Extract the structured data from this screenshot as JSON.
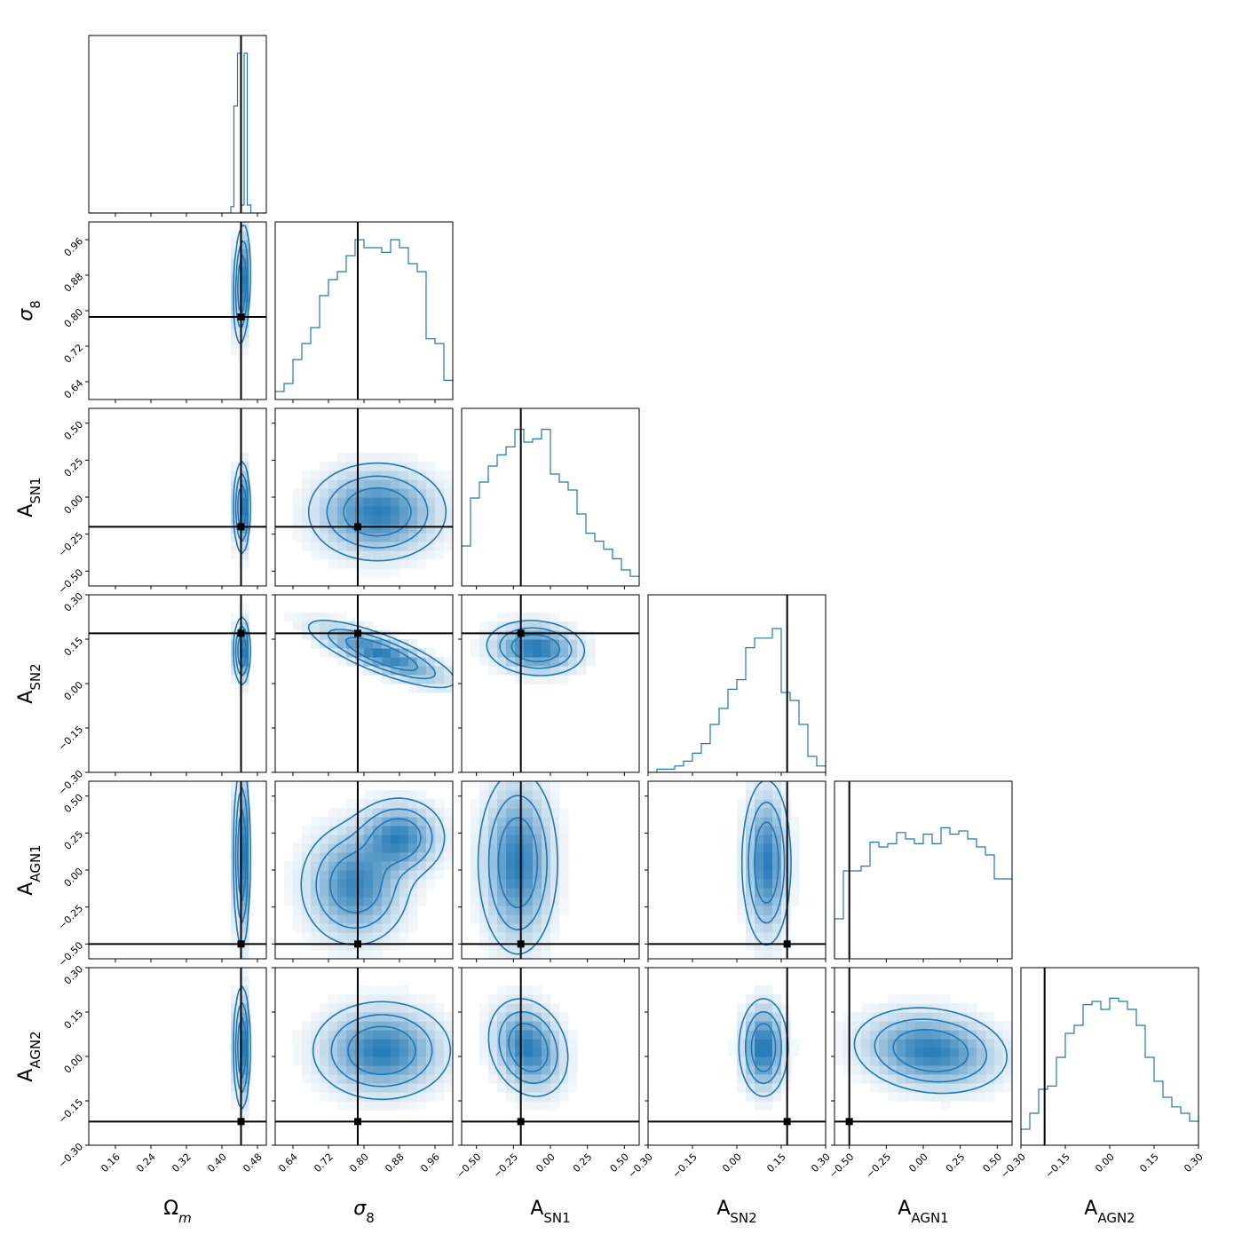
{
  "chart_data": {
    "type": "corner",
    "colors": {
      "series": "#1f77b4",
      "truth": "#000000",
      "frame": "#000000"
    },
    "parameters": [
      {
        "id": "Om",
        "label_main": "Ω",
        "label_sub": "m",
        "sub_italic": true,
        "range": [
          0.1,
          0.5
        ],
        "ticks": [
          "0.16",
          "0.24",
          "0.32",
          "0.40",
          "0.48"
        ],
        "truth": 0.443
      },
      {
        "id": "s8",
        "label_main": "σ",
        "label_sub": "8",
        "sub_italic": false,
        "range": [
          0.6,
          1.0
        ],
        "ticks": [
          "0.64",
          "0.72",
          "0.80",
          "0.88",
          "0.96"
        ],
        "truth": 0.786
      },
      {
        "id": "ASN1",
        "label_main": "A",
        "label_sub": "SN1",
        "sub_italic": false,
        "range": [
          -0.6,
          0.6
        ],
        "ticks": [
          "−0.50",
          "−0.25",
          "0.00",
          "0.25",
          "0.50"
        ],
        "truth": -0.2
      },
      {
        "id": "ASN2",
        "label_main": "A",
        "label_sub": "SN2",
        "sub_italic": false,
        "range": [
          -0.3,
          0.3
        ],
        "ticks": [
          "−0.30",
          "−0.15",
          "0.00",
          "0.15",
          "0.30"
        ],
        "truth": 0.17
      },
      {
        "id": "AAGN1",
        "label_main": "A",
        "label_sub": "AGN1",
        "sub_italic": false,
        "range": [
          -0.6,
          0.6
        ],
        "ticks": [
          "−0.50",
          "−0.25",
          "0.00",
          "0.25",
          "0.50"
        ],
        "truth": -0.5
      },
      {
        "id": "AAGN2",
        "label_main": "A",
        "label_sub": "AGN2",
        "sub_italic": false,
        "range": [
          -0.3,
          0.3
        ],
        "ticks": [
          "−0.30",
          "−0.15",
          "0.00",
          "0.15",
          "0.30"
        ],
        "truth": -0.22
      }
    ],
    "marginals": [
      {
        "param": "Om",
        "bin_edges": [
          0.1,
          0.42,
          0.427,
          0.435,
          0.442,
          0.45,
          0.457,
          0.465,
          0.5
        ],
        "counts": [
          0,
          0.04,
          0.67,
          1.0,
          0.05,
          1.0,
          0.05,
          0.0
        ]
      },
      {
        "param": "s8",
        "bin_edges": [
          0.6,
          0.62,
          0.64,
          0.66,
          0.68,
          0.7,
          0.72,
          0.74,
          0.76,
          0.78,
          0.8,
          0.82,
          0.84,
          0.86,
          0.88,
          0.9,
          0.92,
          0.94,
          0.96,
          0.98,
          1.0
        ],
        "counts": [
          0.05,
          0.1,
          0.25,
          0.35,
          0.45,
          0.65,
          0.75,
          0.8,
          0.9,
          1.0,
          0.95,
          0.95,
          0.92,
          1.0,
          0.95,
          0.85,
          0.8,
          0.38,
          0.35,
          0.12
        ]
      },
      {
        "param": "ASN1",
        "bin_edges": [
          -0.6,
          -0.54,
          -0.48,
          -0.42,
          -0.36,
          -0.3,
          -0.24,
          -0.18,
          -0.12,
          -0.06,
          0.0,
          0.06,
          0.12,
          0.18,
          0.24,
          0.3,
          0.36,
          0.42,
          0.48,
          0.54,
          0.6
        ],
        "counts": [
          0.25,
          0.55,
          0.65,
          0.75,
          0.82,
          0.87,
          0.98,
          0.9,
          0.92,
          0.98,
          0.7,
          0.65,
          0.6,
          0.45,
          0.33,
          0.28,
          0.23,
          0.17,
          0.1,
          0.06
        ]
      },
      {
        "param": "ASN2",
        "bin_edges": [
          -0.3,
          -0.27,
          -0.24,
          -0.21,
          -0.18,
          -0.15,
          -0.12,
          -0.09,
          -0.06,
          -0.03,
          0.0,
          0.03,
          0.06,
          0.09,
          0.12,
          0.15,
          0.18,
          0.21,
          0.24,
          0.27,
          0.3
        ],
        "counts": [
          0.0,
          0.02,
          0.02,
          0.04,
          0.07,
          0.12,
          0.18,
          0.3,
          0.4,
          0.52,
          0.58,
          0.78,
          0.84,
          0.84,
          0.9,
          0.5,
          0.45,
          0.3,
          0.1,
          0.04
        ]
      },
      {
        "param": "AAGN1",
        "bin_edges": [
          -0.6,
          -0.54,
          -0.48,
          -0.42,
          -0.36,
          -0.3,
          -0.24,
          -0.18,
          -0.12,
          -0.06,
          0.0,
          0.06,
          0.12,
          0.18,
          0.24,
          0.3,
          0.36,
          0.42,
          0.48,
          0.54,
          0.6
        ],
        "counts": [
          0.25,
          0.55,
          0.55,
          0.58,
          0.73,
          0.7,
          0.72,
          0.79,
          0.75,
          0.72,
          0.78,
          0.72,
          0.82,
          0.78,
          0.8,
          0.75,
          0.7,
          0.65,
          0.5,
          0.5
        ]
      },
      {
        "param": "AAGN2",
        "bin_edges": [
          -0.3,
          -0.27,
          -0.24,
          -0.21,
          -0.18,
          -0.15,
          -0.12,
          -0.09,
          -0.06,
          -0.03,
          0.0,
          0.03,
          0.06,
          0.09,
          0.12,
          0.15,
          0.18,
          0.21,
          0.24,
          0.27,
          0.3
        ],
        "counts": [
          0.1,
          0.2,
          0.35,
          0.37,
          0.55,
          0.7,
          0.75,
          0.88,
          0.9,
          0.85,
          0.92,
          0.9,
          0.85,
          0.75,
          0.55,
          0.4,
          0.3,
          0.24,
          0.2,
          0.15
        ]
      }
    ],
    "joint": [
      {
        "x": "Om",
        "y": "s8",
        "modes": [
          {
            "x": 0.445,
            "y": 0.86,
            "sx": 0.009,
            "sy": 0.065,
            "r": 0.2,
            "w": 1
          }
        ]
      },
      {
        "x": "Om",
        "y": "ASN1",
        "modes": [
          {
            "x": 0.445,
            "y": -0.07,
            "sx": 0.009,
            "sy": 0.15,
            "r": 0,
            "w": 1
          }
        ]
      },
      {
        "x": "Om",
        "y": "ASN2",
        "modes": [
          {
            "x": 0.445,
            "y": 0.11,
            "sx": 0.009,
            "sy": 0.055,
            "r": 0,
            "w": 1
          }
        ]
      },
      {
        "x": "Om",
        "y": "AAGN1",
        "modes": [
          {
            "x": 0.445,
            "y": 0.1,
            "sx": 0.009,
            "sy": 0.3,
            "r": 0,
            "w": 1
          }
        ]
      },
      {
        "x": "Om",
        "y": "AAGN2",
        "modes": [
          {
            "x": 0.445,
            "y": 0.03,
            "sx": 0.009,
            "sy": 0.1,
            "r": 0,
            "w": 1
          }
        ]
      },
      {
        "x": "s8",
        "y": "ASN1",
        "modes": [
          {
            "x": 0.83,
            "y": -0.1,
            "sx": 0.075,
            "sy": 0.16,
            "r": 0,
            "w": 1
          }
        ]
      },
      {
        "x": "s8",
        "y": "ASN2",
        "modes": [
          {
            "x": 0.84,
            "y": 0.1,
            "sx": 0.08,
            "sy": 0.055,
            "r": -0.8,
            "w": 1
          }
        ]
      },
      {
        "x": "s8",
        "y": "AAGN1",
        "modes": [
          {
            "x": 0.88,
            "y": 0.22,
            "sx": 0.05,
            "sy": 0.13,
            "r": 0,
            "w": 0.6
          },
          {
            "x": 0.78,
            "y": -0.1,
            "sx": 0.06,
            "sy": 0.2,
            "r": 0,
            "w": 0.6
          }
        ]
      },
      {
        "x": "s8",
        "y": "AAGN2",
        "modes": [
          {
            "x": 0.84,
            "y": 0.02,
            "sx": 0.075,
            "sy": 0.08,
            "r": 0,
            "w": 1
          }
        ]
      },
      {
        "x": "ASN1",
        "y": "ASN2",
        "modes": [
          {
            "x": -0.1,
            "y": 0.12,
            "sx": 0.16,
            "sy": 0.045,
            "r": -0.1,
            "w": 1
          }
        ]
      },
      {
        "x": "ASN1",
        "y": "AAGN1",
        "modes": [
          {
            "x": -0.22,
            "y": 0.05,
            "sx": 0.13,
            "sy": 0.3,
            "r": 0,
            "w": 1
          }
        ]
      },
      {
        "x": "ASN1",
        "y": "AAGN2",
        "modes": [
          {
            "x": -0.15,
            "y": 0.03,
            "sx": 0.13,
            "sy": 0.08,
            "r": -0.2,
            "w": 1
          }
        ]
      },
      {
        "x": "ASN2",
        "y": "AAGN1",
        "modes": [
          {
            "x": 0.1,
            "y": 0.05,
            "sx": 0.04,
            "sy": 0.27,
            "r": 0,
            "w": 1
          }
        ]
      },
      {
        "x": "ASN2",
        "y": "AAGN2",
        "modes": [
          {
            "x": 0.09,
            "y": 0.03,
            "sx": 0.04,
            "sy": 0.08,
            "r": 0,
            "w": 1
          }
        ]
      },
      {
        "x": "AAGN1",
        "y": "AAGN2",
        "modes": [
          {
            "x": 0.05,
            "y": 0.02,
            "sx": 0.25,
            "sy": 0.07,
            "r": -0.15,
            "w": 1
          }
        ]
      }
    ],
    "truth_markers": true,
    "grid": false,
    "legend": "none"
  }
}
